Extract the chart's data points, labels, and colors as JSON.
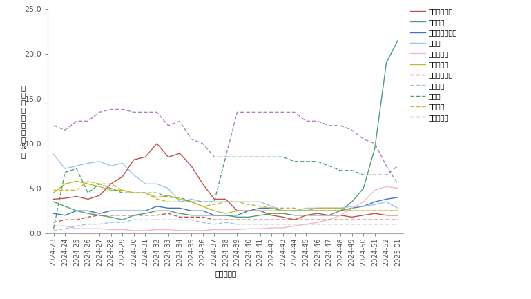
{
  "weeks": [
    "2024-23",
    "2024-24",
    "2024-25",
    "2024-26",
    "2024-27",
    "2024-28",
    "2024-29",
    "2024-30",
    "2024-31",
    "2024-32",
    "2024-33",
    "2024-34",
    "2024-35",
    "2024-36",
    "2024-37",
    "2024-38",
    "2024-39",
    "2024-40",
    "2024-41",
    "2024-42",
    "2024-43",
    "2024-44",
    "2024-45",
    "2024-46",
    "2024-47",
    "2024-48",
    "2024-49",
    "2024-50",
    "2024-51",
    "2024-52",
    "2025-01"
  ],
  "series": [
    {
      "name": "新型冠状病毒",
      "color": "#c0504d",
      "linestyle": "solid",
      "data": [
        3.8,
        3.9,
        4.1,
        3.8,
        4.2,
        5.5,
        6.3,
        8.2,
        8.5,
        10.0,
        8.5,
        8.9,
        7.5,
        5.5,
        3.8,
        3.8,
        2.5,
        2.5,
        2.5,
        2.0,
        1.8,
        1.5,
        2.0,
        2.2,
        2.0,
        2.0,
        1.8,
        2.0,
        2.2,
        2.0,
        2.0
      ]
    },
    {
      "name": "流感病毒",
      "color": "#4e9e6e",
      "linestyle": "solid",
      "data": [
        3.5,
        3.0,
        2.5,
        2.2,
        2.0,
        1.8,
        1.5,
        2.0,
        2.2,
        2.5,
        2.5,
        2.2,
        2.0,
        2.0,
        2.0,
        2.0,
        1.8,
        1.8,
        2.0,
        2.2,
        2.2,
        2.0,
        2.0,
        2.0,
        2.0,
        2.5,
        3.5,
        5.0,
        9.5,
        19.0,
        21.5
      ]
    },
    {
      "name": "呼吸道合胞病毒",
      "color": "#4472c4",
      "linestyle": "solid",
      "data": [
        2.2,
        2.0,
        2.5,
        2.5,
        2.2,
        2.5,
        2.5,
        2.5,
        2.5,
        3.0,
        2.8,
        2.8,
        2.5,
        2.5,
        2.0,
        2.0,
        2.0,
        2.5,
        2.8,
        2.8,
        2.5,
        2.5,
        2.5,
        2.5,
        2.5,
        2.5,
        2.8,
        3.0,
        3.5,
        3.8,
        4.0
      ]
    },
    {
      "name": "腺病毒",
      "color": "#9dc3e6",
      "linestyle": "solid",
      "data": [
        8.8,
        7.2,
        7.5,
        7.8,
        8.0,
        7.5,
        7.8,
        6.5,
        5.5,
        5.5,
        5.0,
        3.5,
        3.8,
        3.5,
        3.5,
        3.5,
        3.5,
        3.5,
        3.5,
        3.0,
        2.5,
        2.5,
        2.8,
        2.8,
        2.8,
        2.8,
        3.0,
        3.0,
        3.2,
        3.5,
        2.8
      ]
    },
    {
      "name": "人偏肺病毒",
      "color": "#f4b8c8",
      "linestyle": "solid",
      "data": [
        0.8,
        0.8,
        0.5,
        0.5,
        0.5,
        0.4,
        0.4,
        0.3,
        0.3,
        0.4,
        0.4,
        0.3,
        0.3,
        0.3,
        0.4,
        0.4,
        0.4,
        0.5,
        0.5,
        0.6,
        0.6,
        0.8,
        1.0,
        1.2,
        1.5,
        2.0,
        2.8,
        3.5,
        4.8,
        5.2,
        5.0
      ]
    },
    {
      "name": "副流感病毒",
      "color": "#c4b82a",
      "linestyle": "solid",
      "data": [
        4.5,
        5.5,
        5.8,
        5.5,
        5.2,
        4.8,
        4.8,
        4.5,
        4.5,
        4.0,
        4.2,
        3.8,
        3.5,
        3.0,
        2.5,
        2.2,
        2.5,
        2.5,
        2.5,
        2.5,
        2.5,
        2.5,
        2.5,
        2.8,
        2.8,
        2.8,
        2.5,
        2.5,
        2.5,
        2.5,
        2.5
      ]
    },
    {
      "name": "普通冠状病毒",
      "color": "#c0504d",
      "linestyle": "dashed",
      "data": [
        1.2,
        1.5,
        1.5,
        1.8,
        2.0,
        2.0,
        2.0,
        2.0,
        2.0,
        2.0,
        2.2,
        1.8,
        1.8,
        1.8,
        1.5,
        1.5,
        1.5,
        1.5,
        1.5,
        1.5,
        1.5,
        1.5,
        1.5,
        1.5,
        1.5,
        1.5,
        1.5,
        1.5,
        1.5,
        1.5,
        1.5
      ]
    },
    {
      "name": "博卡病毒",
      "color": "#9dc3e6",
      "linestyle": "dashed",
      "data": [
        0.3,
        0.5,
        0.8,
        1.0,
        1.0,
        1.2,
        1.2,
        1.5,
        1.5,
        1.5,
        1.5,
        1.5,
        1.5,
        1.2,
        1.0,
        1.2,
        1.0,
        1.0,
        1.0,
        1.0,
        1.0,
        1.0,
        1.0,
        1.0,
        1.0,
        1.0,
        1.0,
        1.0,
        1.0,
        1.0,
        1.0
      ]
    },
    {
      "name": "鼻病毒",
      "color": "#4e9e6e",
      "linestyle": "dashed",
      "data": [
        0.5,
        6.8,
        7.2,
        4.5,
        5.5,
        5.0,
        4.5,
        4.5,
        4.5,
        4.5,
        4.0,
        4.0,
        3.5,
        3.5,
        3.5,
        8.5,
        8.5,
        8.5,
        8.5,
        8.5,
        8.5,
        8.0,
        8.0,
        8.0,
        7.5,
        7.0,
        7.0,
        6.5,
        6.5,
        6.5,
        7.5
      ]
    },
    {
      "name": "肠道病毒",
      "color": "#c4b82a",
      "linestyle": "dashed",
      "data": [
        4.8,
        4.8,
        4.8,
        5.8,
        5.5,
        5.5,
        4.8,
        4.5,
        4.5,
        3.8,
        3.5,
        3.5,
        3.5,
        3.0,
        3.2,
        3.5,
        3.5,
        3.2,
        3.0,
        2.8,
        2.8,
        2.8,
        2.5,
        2.5,
        2.5,
        2.5,
        2.5,
        2.5,
        2.5,
        2.5,
        2.5
      ]
    },
    {
      "name": "肺炎支原体",
      "color": "#b07fc0",
      "linestyle": "dashed",
      "data": [
        12.0,
        11.5,
        12.5,
        12.5,
        13.5,
        13.8,
        13.8,
        13.5,
        13.5,
        13.5,
        12.0,
        12.5,
        10.5,
        10.0,
        8.5,
        8.5,
        13.5,
        13.5,
        13.5,
        13.5,
        13.5,
        13.5,
        12.5,
        12.5,
        12.0,
        12.0,
        11.5,
        10.5,
        10.0,
        7.5,
        5.5
      ]
    }
  ],
  "xlabel": "监测年－周",
  "ylabel": "核酸检测阳性率（%）",
  "ylim": [
    0,
    25
  ],
  "yticks": [
    0.0,
    5.0,
    10.0,
    15.0,
    20.0,
    25.0
  ],
  "background_color": "#ffffff"
}
